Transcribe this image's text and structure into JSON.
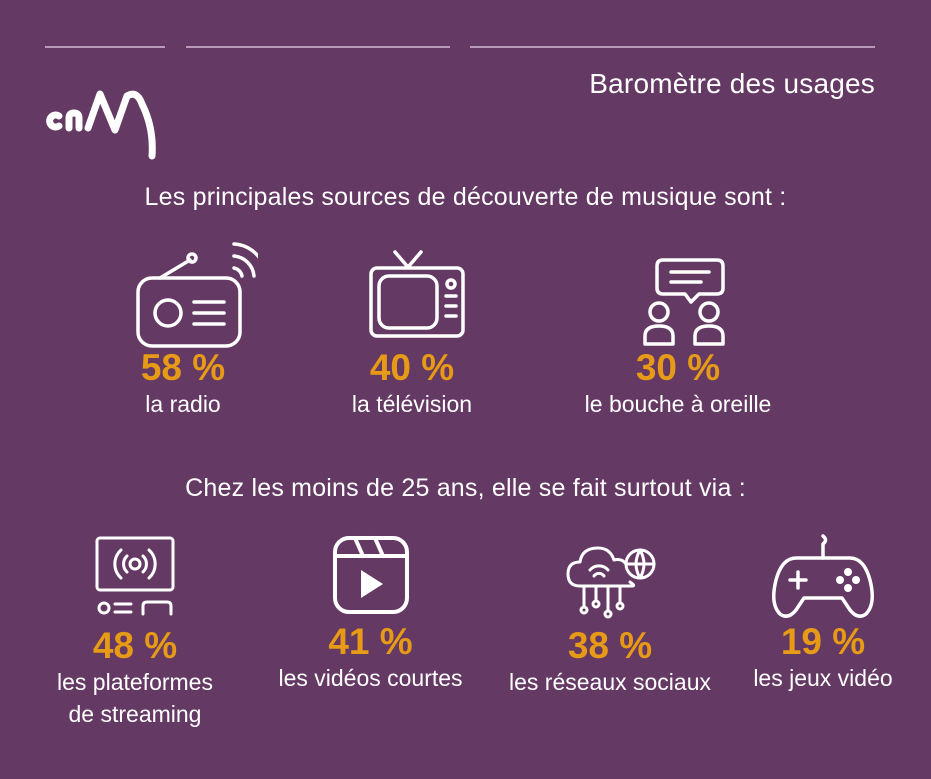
{
  "header": {
    "subtitle": "Baromètre des usages"
  },
  "section1": {
    "heading": "Les principales sources de découverte de musique sont :",
    "items": [
      {
        "percent": "58 %",
        "label": "la radio",
        "icon": "radio-icon"
      },
      {
        "percent": "40 %",
        "label": "la télévision",
        "icon": "television-icon"
      },
      {
        "percent": "30 %",
        "label": "le bouche à oreille",
        "icon": "conversation-icon"
      }
    ]
  },
  "section2": {
    "heading": "Chez les moins de 25 ans, elle se fait surtout via :",
    "items": [
      {
        "percent": "48 %",
        "label_line1": "les plateformes",
        "label_line2": "de streaming",
        "icon": "streaming-device-icon"
      },
      {
        "percent": "41 %",
        "label": "les vidéos courtes",
        "icon": "video-play-icon"
      },
      {
        "percent": "38 %",
        "label": "les réseaux sociaux",
        "icon": "cloud-network-icon"
      },
      {
        "percent": "19 %",
        "label": "les jeux vidéo",
        "icon": "gamepad-icon"
      }
    ]
  },
  "colors": {
    "background": "#643963",
    "accent": "#e69a16",
    "text": "#ffffff",
    "rule": "#b99ab8"
  }
}
